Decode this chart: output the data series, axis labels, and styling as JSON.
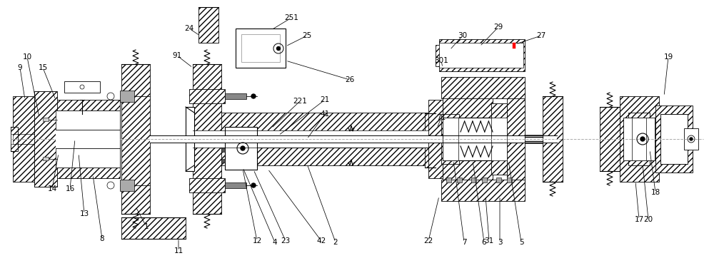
{
  "bg_color": "#ffffff",
  "line_color": "#000000",
  "centerline_color": "#aaaaaa",
  "fig_width": 10.0,
  "fig_height": 3.9,
  "dpi": 100
}
